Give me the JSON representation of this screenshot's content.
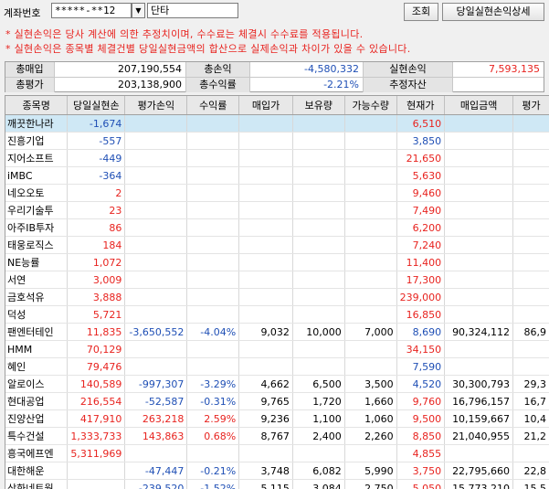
{
  "toolbar": {
    "account_label": "계좌번호",
    "account_value": "*****-**12",
    "account_name": "단타",
    "search_label": "조회",
    "detail_label": "당일실현손익상세"
  },
  "notices": [
    "* 실현손익은 당사 계산에 의한 추정치이며, 수수료는 체결시 수수료를 적용됩니다.",
    "* 실현손익은 종목별 체결건별 당일실현금액의 합산으로 실제손익과 차이가 있을 수 있습니다."
  ],
  "summary": {
    "total_buy_label": "총매입",
    "total_buy": "207,190,554",
    "total_pl_label": "총손익",
    "total_pl": "-4,580,332",
    "realized_label": "실현손익",
    "realized": "7,593,135",
    "total_eval_label": "총평가",
    "total_eval": "203,138,900",
    "total_rate_label": "총수익률",
    "total_rate": "-2.21%",
    "est_asset_label": "추정자산",
    "est_asset": ""
  },
  "columns": [
    "종목명",
    "당일실현손",
    "평가손익",
    "수익률",
    "매입가",
    "보유량",
    "가능수량",
    "현재가",
    "매입금액",
    "평가"
  ],
  "colors": {
    "up": "#e8231f",
    "down": "#1f4fb5",
    "selected_row": "#cfe8f5"
  },
  "rows": [
    {
      "name": "깨끗한나라",
      "realized": "-1,674",
      "rc": "b",
      "eval": "",
      "ec": "k",
      "rate": "",
      "rtc": "k",
      "buy": "",
      "hold": "",
      "avail": "",
      "price": "6,510",
      "pc": "r",
      "amt": "",
      "ev": "",
      "sel": true
    },
    {
      "name": "진흥기업",
      "realized": "-557",
      "rc": "b",
      "eval": "",
      "ec": "k",
      "rate": "",
      "rtc": "k",
      "buy": "",
      "hold": "",
      "avail": "",
      "price": "3,850",
      "pc": "b",
      "amt": "",
      "ev": ""
    },
    {
      "name": "지어소프트",
      "realized": "-449",
      "rc": "b",
      "eval": "",
      "ec": "k",
      "rate": "",
      "rtc": "k",
      "buy": "",
      "hold": "",
      "avail": "",
      "price": "21,650",
      "pc": "r",
      "amt": "",
      "ev": ""
    },
    {
      "name": "iMBC",
      "realized": "-364",
      "rc": "b",
      "eval": "",
      "ec": "k",
      "rate": "",
      "rtc": "k",
      "buy": "",
      "hold": "",
      "avail": "",
      "price": "5,630",
      "pc": "r",
      "amt": "",
      "ev": ""
    },
    {
      "name": "네오오토",
      "realized": "2",
      "rc": "r",
      "eval": "",
      "ec": "k",
      "rate": "",
      "rtc": "k",
      "buy": "",
      "hold": "",
      "avail": "",
      "price": "9,460",
      "pc": "r",
      "amt": "",
      "ev": ""
    },
    {
      "name": "우리기술투",
      "realized": "23",
      "rc": "r",
      "eval": "",
      "ec": "k",
      "rate": "",
      "rtc": "k",
      "buy": "",
      "hold": "",
      "avail": "",
      "price": "7,490",
      "pc": "r",
      "amt": "",
      "ev": ""
    },
    {
      "name": "아주IB투자",
      "realized": "86",
      "rc": "r",
      "eval": "",
      "ec": "k",
      "rate": "",
      "rtc": "k",
      "buy": "",
      "hold": "",
      "avail": "",
      "price": "6,200",
      "pc": "r",
      "amt": "",
      "ev": ""
    },
    {
      "name": "태웅로직스",
      "realized": "184",
      "rc": "r",
      "eval": "",
      "ec": "k",
      "rate": "",
      "rtc": "k",
      "buy": "",
      "hold": "",
      "avail": "",
      "price": "7,240",
      "pc": "r",
      "amt": "",
      "ev": ""
    },
    {
      "name": "NE능률",
      "realized": "1,072",
      "rc": "r",
      "eval": "",
      "ec": "k",
      "rate": "",
      "rtc": "k",
      "buy": "",
      "hold": "",
      "avail": "",
      "price": "11,400",
      "pc": "r",
      "amt": "",
      "ev": ""
    },
    {
      "name": "서연",
      "realized": "3,009",
      "rc": "r",
      "eval": "",
      "ec": "k",
      "rate": "",
      "rtc": "k",
      "buy": "",
      "hold": "",
      "avail": "",
      "price": "17,300",
      "pc": "r",
      "amt": "",
      "ev": ""
    },
    {
      "name": "금호석유",
      "realized": "3,888",
      "rc": "r",
      "eval": "",
      "ec": "k",
      "rate": "",
      "rtc": "k",
      "buy": "",
      "hold": "",
      "avail": "",
      "price": "239,000",
      "pc": "r",
      "amt": "",
      "ev": ""
    },
    {
      "name": "덕성",
      "realized": "5,721",
      "rc": "r",
      "eval": "",
      "ec": "k",
      "rate": "",
      "rtc": "k",
      "buy": "",
      "hold": "",
      "avail": "",
      "price": "16,850",
      "pc": "r",
      "amt": "",
      "ev": ""
    },
    {
      "name": "팬엔터테인",
      "realized": "11,835",
      "rc": "r",
      "eval": "-3,650,552",
      "ec": "b",
      "rate": "-4.04%",
      "rtc": "b",
      "buy": "9,032",
      "hold": "10,000",
      "avail": "7,000",
      "price": "8,690",
      "pc": "b",
      "amt": "90,324,112",
      "ev": "86,9"
    },
    {
      "name": "HMM",
      "realized": "70,129",
      "rc": "r",
      "eval": "",
      "ec": "k",
      "rate": "",
      "rtc": "k",
      "buy": "",
      "hold": "",
      "avail": "",
      "price": "34,150",
      "pc": "r",
      "amt": "",
      "ev": ""
    },
    {
      "name": "혜인",
      "realized": "79,476",
      "rc": "r",
      "eval": "",
      "ec": "k",
      "rate": "",
      "rtc": "k",
      "buy": "",
      "hold": "",
      "avail": "",
      "price": "7,590",
      "pc": "b",
      "amt": "",
      "ev": ""
    },
    {
      "name": "알로이스",
      "realized": "140,589",
      "rc": "r",
      "eval": "-997,307",
      "ec": "b",
      "rate": "-3.29%",
      "rtc": "b",
      "buy": "4,662",
      "hold": "6,500",
      "avail": "3,500",
      "price": "4,520",
      "pc": "b",
      "amt": "30,300,793",
      "ev": "29,3"
    },
    {
      "name": "현대공업",
      "realized": "216,554",
      "rc": "r",
      "eval": "-52,587",
      "ec": "b",
      "rate": "-0.31%",
      "rtc": "b",
      "buy": "9,765",
      "hold": "1,720",
      "avail": "1,660",
      "price": "9,760",
      "pc": "r",
      "amt": "16,796,157",
      "ev": "16,7"
    },
    {
      "name": "진양산업",
      "realized": "417,910",
      "rc": "r",
      "eval": "263,218",
      "ec": "r",
      "rate": "2.59%",
      "rtc": "r",
      "buy": "9,236",
      "hold": "1,100",
      "avail": "1,060",
      "price": "9,500",
      "pc": "r",
      "amt": "10,159,667",
      "ev": "10,4"
    },
    {
      "name": "특수건설",
      "realized": "1,333,733",
      "rc": "r",
      "eval": "143,863",
      "ec": "r",
      "rate": "0.68%",
      "rtc": "r",
      "buy": "8,767",
      "hold": "2,400",
      "avail": "2,260",
      "price": "8,850",
      "pc": "r",
      "amt": "21,040,955",
      "ev": "21,2"
    },
    {
      "name": "흥국에프엔",
      "realized": "5,311,969",
      "rc": "r",
      "eval": "",
      "ec": "k",
      "rate": "",
      "rtc": "k",
      "buy": "",
      "hold": "",
      "avail": "",
      "price": "4,855",
      "pc": "r",
      "amt": "",
      "ev": ""
    },
    {
      "name": "대한해운",
      "realized": "",
      "rc": "k",
      "eval": "-47,447",
      "ec": "b",
      "rate": "-0.21%",
      "rtc": "b",
      "buy": "3,748",
      "hold": "6,082",
      "avail": "5,990",
      "price": "3,750",
      "pc": "r",
      "amt": "22,795,660",
      "ev": "22,8"
    },
    {
      "name": "삼화네트웍",
      "realized": "",
      "rc": "k",
      "eval": "-239,520",
      "ec": "b",
      "rate": "-1.52%",
      "rtc": "b",
      "buy": "5,115",
      "hold": "3,084",
      "avail": "2,750",
      "price": "5,050",
      "pc": "r",
      "amt": "15,773,210",
      "ev": "15,5"
    }
  ]
}
